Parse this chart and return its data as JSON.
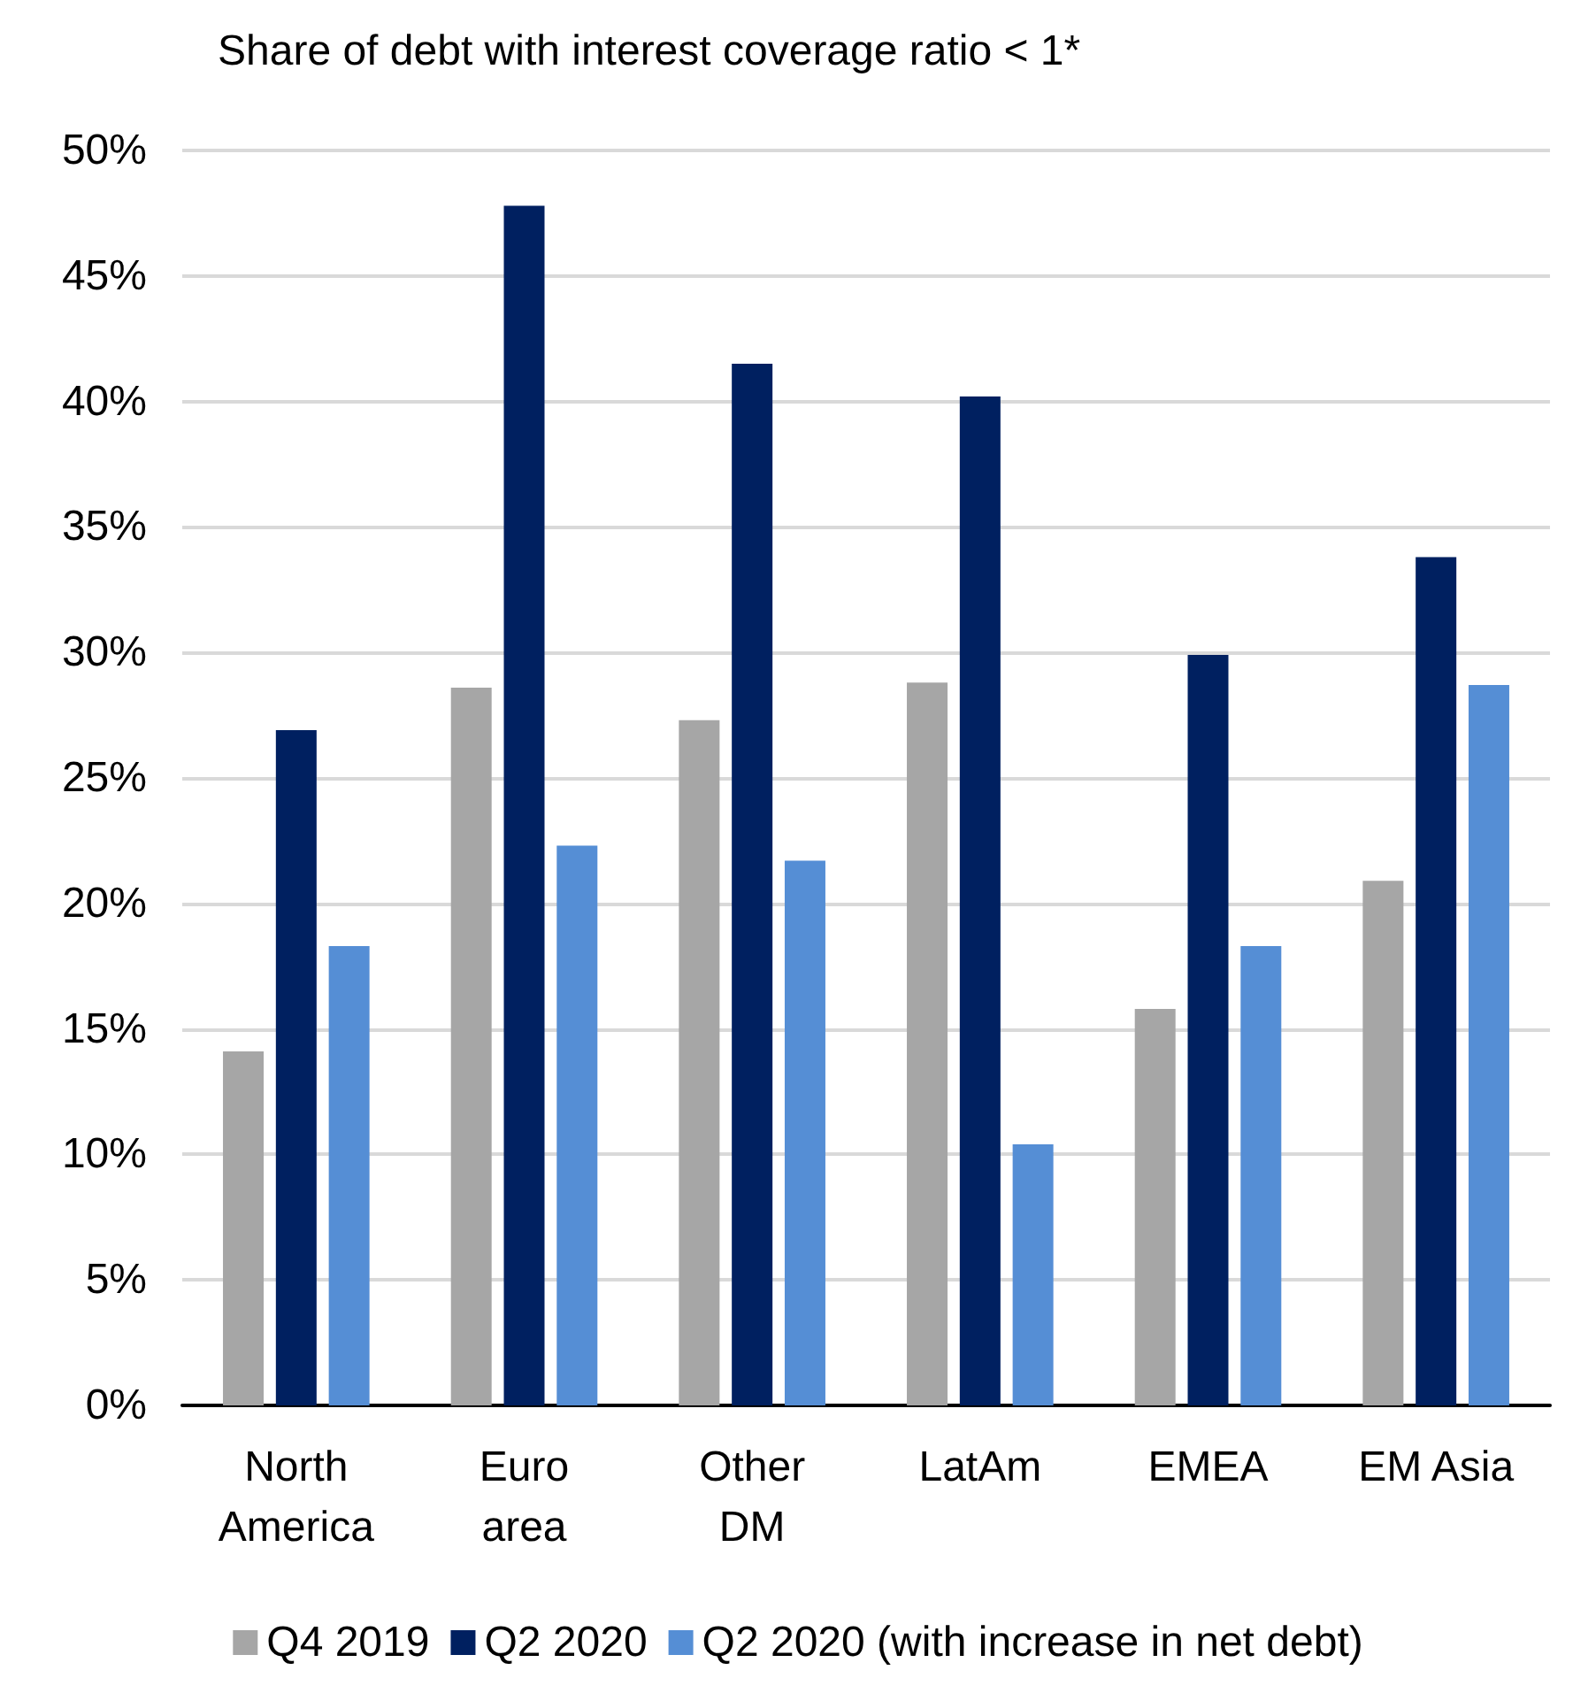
{
  "chart_data": {
    "type": "bar",
    "title": "Share of debt with interest coverage ratio < 1*",
    "categories": [
      "North\nAmerica",
      "Euro\narea",
      "Other\nDM",
      "LatAm",
      "EMEA",
      "EM Asia"
    ],
    "series": [
      {
        "name": "Q4 2019",
        "color": "#a6a6a6",
        "values": [
          14.1,
          28.6,
          27.3,
          28.8,
          15.8,
          20.9
        ]
      },
      {
        "name": "Q2 2020",
        "color": "#002060",
        "values": [
          26.9,
          47.8,
          41.5,
          40.2,
          29.9,
          33.8
        ]
      },
      {
        "name": "Q2 2020 (with increase in net debt)",
        "color": "#558ed5",
        "values": [
          18.3,
          22.3,
          21.7,
          10.4,
          18.3,
          28.7
        ]
      }
    ],
    "ylim": [
      0,
      50
    ],
    "yticks": [
      {
        "value": 0,
        "label": "0%"
      },
      {
        "value": 5,
        "label": "5%"
      },
      {
        "value": 10,
        "label": "10%"
      },
      {
        "value": 15,
        "label": "15%"
      },
      {
        "value": 20,
        "label": "20%"
      },
      {
        "value": 25,
        "label": "25%"
      },
      {
        "value": 30,
        "label": "30%"
      },
      {
        "value": 35,
        "label": "35%"
      },
      {
        "value": 40,
        "label": "40%"
      },
      {
        "value": 45,
        "label": "45%"
      },
      {
        "value": 50,
        "label": "50%"
      }
    ],
    "grid": "y",
    "legend": "bottom"
  }
}
